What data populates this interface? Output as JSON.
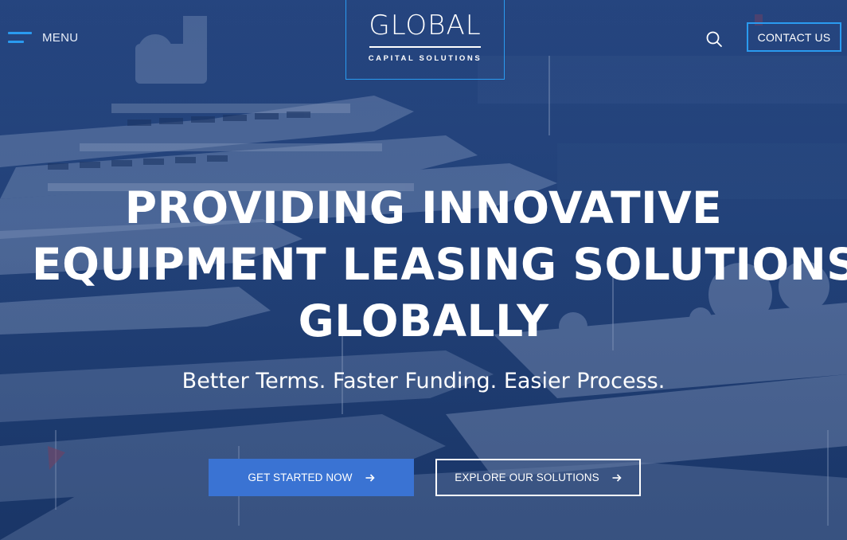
{
  "header": {
    "menu_label": "MENU",
    "menu_icon": "hamburger-menu-icon",
    "logo": {
      "word": "GLOBAL",
      "subtitle": "CAPITAL SOLUTIONS"
    },
    "search_icon": "search-icon",
    "contact_label": "CONTACT US"
  },
  "hero": {
    "headline_lines": [
      "PROVIDING INNOVATIVE",
      "EQUIPMENT LEASING SOLUTIONS",
      "GLOBALLY"
    ],
    "subheadline": "Better Terms. Faster Funding. Easier Process.",
    "primary_cta": "GET STARTED NOW",
    "secondary_cta": "EXPLORE OUR SOLUTIONS",
    "cta_icon": "arrow-right-icon",
    "background": "yacht-marina-image"
  },
  "colors": {
    "accent": "#2a9bf0",
    "primary_button": "#3a73d3",
    "overlay": "#1f3a6a"
  }
}
